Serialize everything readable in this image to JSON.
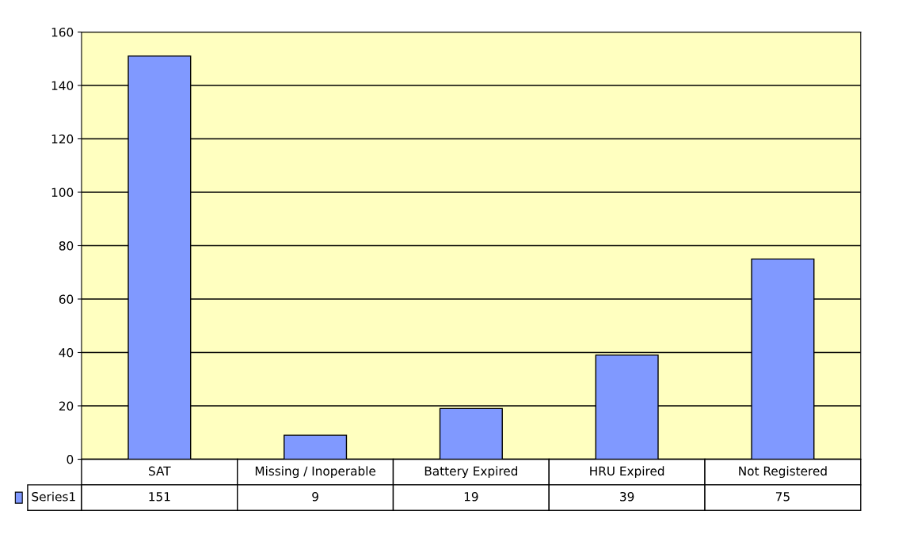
{
  "chart_data": {
    "type": "bar",
    "categories": [
      "SAT",
      "Missing / Inoperable",
      "Battery Expired",
      "HRU Expired",
      "Not Registered"
    ],
    "series": [
      {
        "name": "Series1",
        "color": "#8099ff",
        "values": [
          151,
          9,
          19,
          39,
          75
        ]
      }
    ],
    "ylim": [
      0,
      160
    ],
    "yticks": [
      0,
      20,
      40,
      60,
      80,
      100,
      120,
      140,
      160
    ],
    "grid": "y",
    "data_labels": true
  }
}
